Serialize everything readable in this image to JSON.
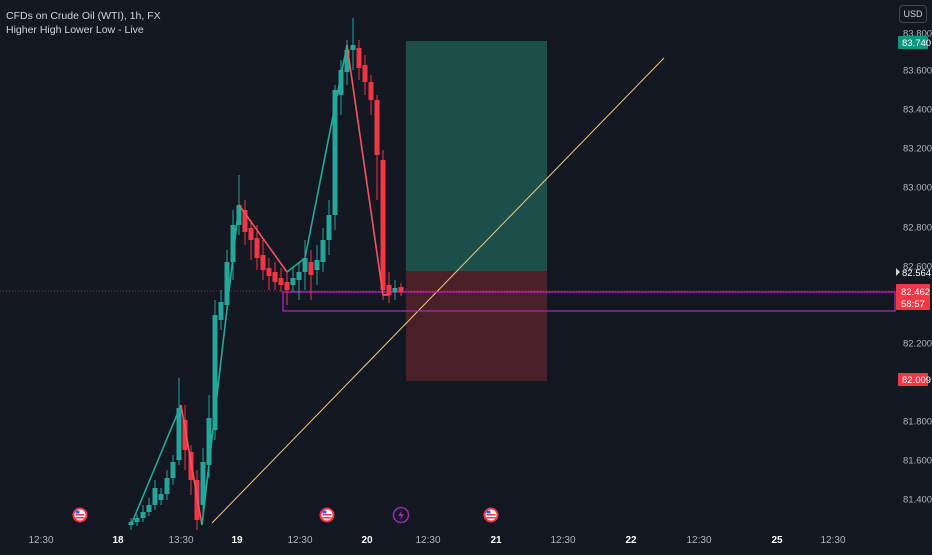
{
  "legend": {
    "title": "CFDs on Crude Oil (WTI), 1h, FX",
    "indicator": "Higher High Lower Low - Live"
  },
  "currency_button": "USD",
  "colors": {
    "background": "#131722",
    "up": "#26a69a",
    "down": "#f23645",
    "zigzag_up": "#22ab94",
    "zigzag_down": "#f7525f",
    "box": "#c21fc8",
    "trendline": "#f5c878",
    "profit_zone": "#1c4f4a",
    "loss_zone": "#4a1f27",
    "target_label": "#089981",
    "stop_label": "#f23645",
    "price_label": "#f23645"
  },
  "price_axis": {
    "ticks": [
      "83.800",
      "83.600",
      "83.400",
      "83.200",
      "83.000",
      "82.800",
      "82.600",
      "82.200",
      "81.800",
      "81.600",
      "81.400"
    ],
    "target_label": "83.740",
    "current_marker": "82.564",
    "last_price": "82.462",
    "countdown": "58:57",
    "stop_label": "82.009"
  },
  "time_axis": {
    "ticks": [
      "12:30",
      "18",
      "13:30",
      "19",
      "12:30",
      "20",
      "12:30",
      "21",
      "12:30",
      "22",
      "12:30",
      "25",
      "12:30"
    ]
  },
  "event_icons": [
    "us-flag-icon",
    "us-flag-icon",
    "lightning-icon",
    "us-flag-icon"
  ]
}
